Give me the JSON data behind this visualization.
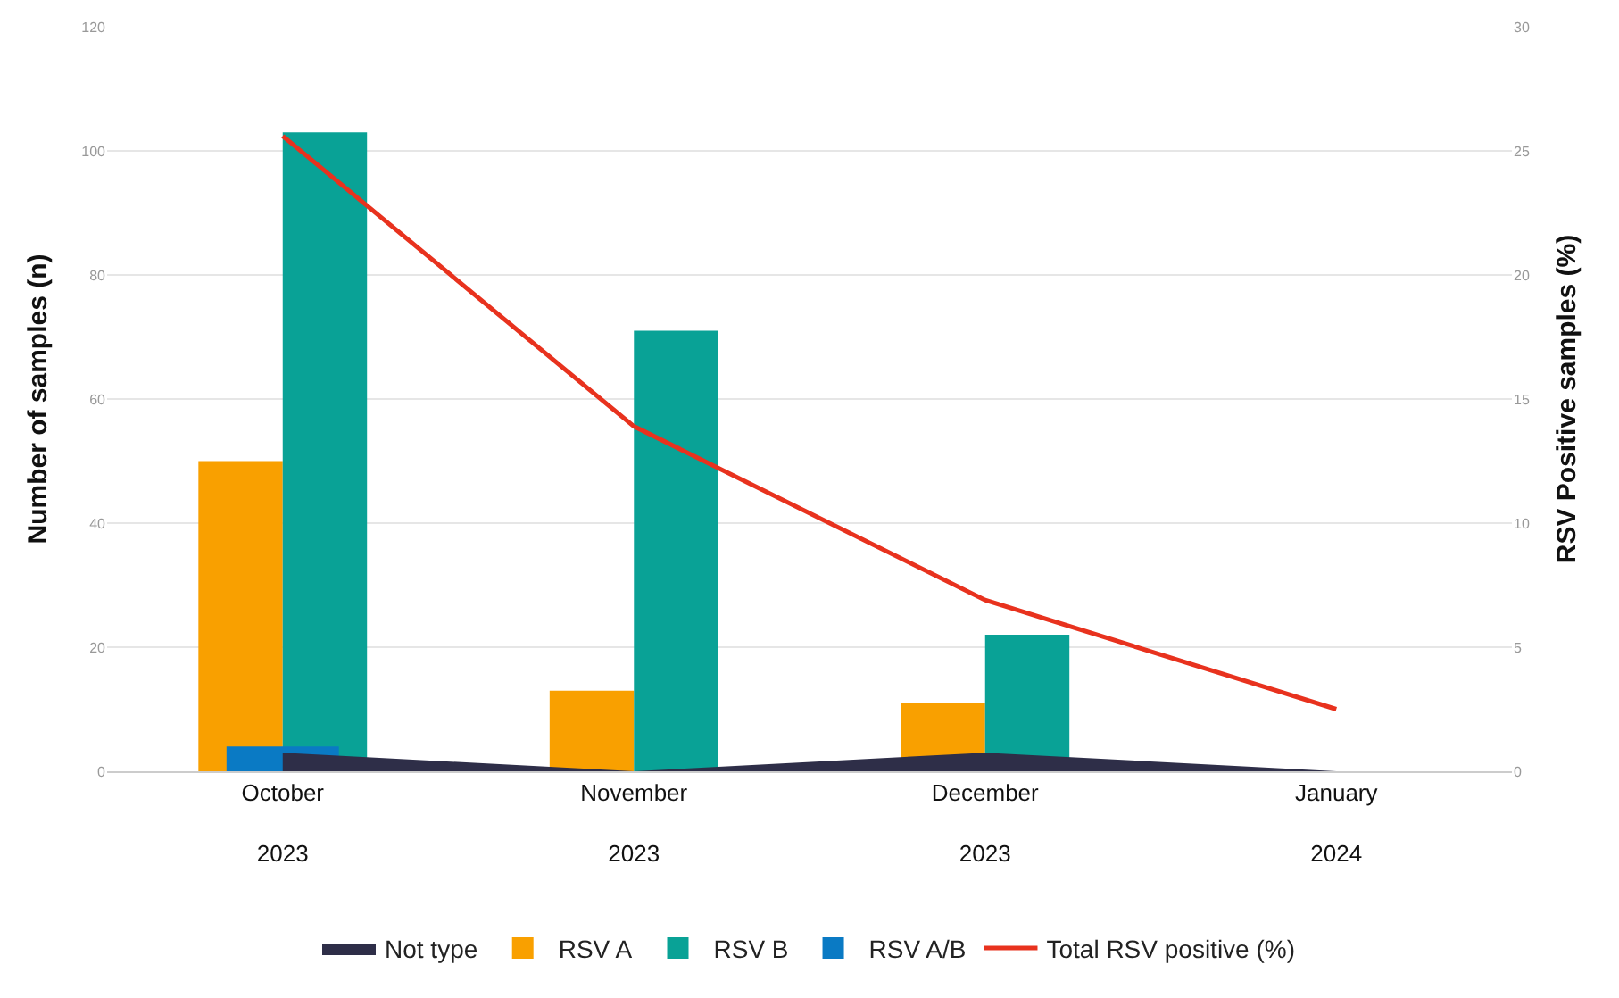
{
  "chart_data": {
    "type": "bar",
    "categories": [
      "October\n2023",
      "November\n2023",
      "December\n2023",
      "January\n2024"
    ],
    "ylabel": "Number of samples (n)",
    "y2label": "RSV Positive samples (%)",
    "series": [
      {
        "name": "Not type",
        "type": "area",
        "color": "#2e2e48",
        "values": [
          3,
          0,
          3,
          0
        ]
      },
      {
        "name": "RSV A",
        "color": "#f9a000",
        "values": [
          50,
          13,
          11,
          null
        ]
      },
      {
        "name": "RSV B",
        "color": "#09a296",
        "values": [
          103,
          71,
          22,
          null
        ]
      },
      {
        "name": "RSV A/B",
        "color": "#0a7ac4",
        "values": [
          4,
          null,
          null,
          null
        ]
      },
      {
        "name": "Total RSV positive (%)",
        "type": "line",
        "axis": "y2",
        "color": "#e8321e",
        "values": [
          25.6,
          13.9,
          6.9,
          2.5
        ]
      }
    ],
    "ylim": [
      0,
      120
    ],
    "yticks": [
      0,
      20,
      40,
      60,
      80,
      100,
      120
    ],
    "y2lim": [
      0,
      30
    ],
    "y2ticks": [
      0,
      5,
      10,
      15,
      20,
      25,
      30
    ],
    "grid": "y",
    "legend": "bottom",
    "marker": "none",
    "line_style": "solid"
  }
}
